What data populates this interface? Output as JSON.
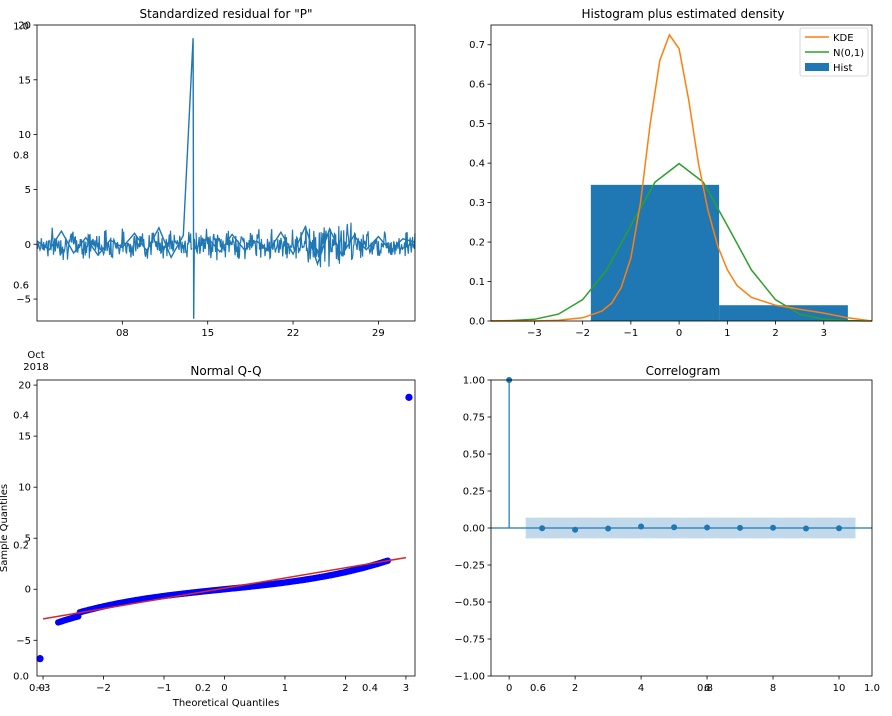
{
  "ghost_ticks": {
    "bg_y": [
      "1.0",
      "0.8",
      "0.6",
      "0.4",
      "0.2",
      "0.0"
    ],
    "bg_x": [
      "0.0",
      "0.2",
      "0.4",
      "0.6",
      "0.8",
      "1.0"
    ]
  },
  "chart_data": [
    {
      "id": "residual",
      "type": "line",
      "title": "Standardized residual for \"P\"",
      "xlabel": "",
      "ylabel": "",
      "x_ticks": [
        "08",
        "15",
        "22",
        "29"
      ],
      "x_tick_days": [
        8,
        15,
        22,
        29
      ],
      "x_start_label": "Oct\n2018",
      "x_range_days": [
        1,
        32
      ],
      "ylim": [
        -7,
        20
      ],
      "y_ticks": [
        20,
        15,
        10,
        5,
        0,
        -5
      ],
      "series": [
        {
          "color": "#1f77b4",
          "x_days": [
            1.0,
            2.0,
            3.0,
            4.0,
            5.0,
            6.0,
            7.0,
            8.0,
            9.0,
            10.0,
            11.0,
            12.0,
            13.0,
            13.8,
            13.85,
            13.9,
            14.0,
            15.0,
            16.0,
            17.0,
            18.0,
            19.0,
            20.0,
            21.0,
            22.0,
            23.0,
            24.0,
            25.0,
            26.0,
            27.0,
            28.0,
            29.0,
            30.0,
            31.0,
            32.0
          ],
          "values": [
            0.3,
            -0.5,
            1.2,
            -0.8,
            0.6,
            -1.0,
            0.4,
            -0.3,
            1.0,
            -0.6,
            1.5,
            -1.2,
            0.8,
            18.8,
            -6.8,
            0.5,
            -0.4,
            0.6,
            -0.7,
            0.9,
            -0.5,
            0.3,
            -0.6,
            1.1,
            -0.9,
            1.6,
            -1.8,
            1.4,
            -1.0,
            0.8,
            -0.5,
            0.7,
            -0.6,
            0.5,
            0.2
          ]
        }
      ]
    },
    {
      "id": "histogram",
      "type": "bar",
      "title": "Histogram plus estimated density",
      "xlim": [
        -3.9,
        4.0
      ],
      "ylim": [
        0,
        0.75
      ],
      "x_ticks": [
        -3,
        -2,
        -1,
        0,
        1,
        2,
        3
      ],
      "y_ticks": [
        0.0,
        0.1,
        0.2,
        0.3,
        0.4,
        0.5,
        0.6,
        0.7
      ],
      "legend": {
        "placement": "top-right",
        "entries": [
          "KDE",
          "N(0,1)",
          "Hist"
        ]
      },
      "bins": [
        {
          "x0": -1.83,
          "x1": 0.83,
          "value": 0.345
        },
        {
          "x0": 0.83,
          "x1": 3.5,
          "value": 0.04
        }
      ],
      "series": [
        {
          "name": "KDE",
          "color": "#ff7f0e",
          "x": [
            -3.9,
            -3.0,
            -2.5,
            -2.0,
            -1.6,
            -1.4,
            -1.2,
            -1.0,
            -0.8,
            -0.6,
            -0.4,
            -0.2,
            0.0,
            0.2,
            0.4,
            0.6,
            0.8,
            1.0,
            1.2,
            1.5,
            2.0,
            2.5,
            3.0,
            3.5,
            4.0
          ],
          "values": [
            0.0,
            0.0,
            0.002,
            0.008,
            0.025,
            0.045,
            0.085,
            0.16,
            0.3,
            0.5,
            0.66,
            0.725,
            0.69,
            0.56,
            0.4,
            0.28,
            0.19,
            0.13,
            0.09,
            0.06,
            0.04,
            0.03,
            0.02,
            0.008,
            0.0
          ]
        },
        {
          "name": "N(0,1)",
          "color": "#2ca02c",
          "x": [
            -3.9,
            -3.5,
            -3.0,
            -2.5,
            -2.0,
            -1.5,
            -1.0,
            -0.5,
            0.0,
            0.5,
            1.0,
            1.5,
            2.0,
            2.5,
            3.0,
            3.5,
            4.0
          ],
          "values": [
            0.0002,
            0.0009,
            0.0044,
            0.0175,
            0.054,
            0.1295,
            0.242,
            0.352,
            0.3989,
            0.352,
            0.242,
            0.1295,
            0.054,
            0.0175,
            0.0044,
            0.0009,
            0.0001
          ]
        }
      ]
    },
    {
      "id": "qq",
      "type": "scatter",
      "title": "Normal Q-Q",
      "xlabel": "Theoretical Quantiles",
      "ylabel": "Sample Quantiles",
      "xlim": [
        -3.1,
        3.15
      ],
      "ylim": [
        -8.5,
        20.5
      ],
      "x_ticks": [
        -3,
        -2,
        -1,
        0,
        1,
        2,
        3
      ],
      "y_ticks": [
        20,
        15,
        10,
        5,
        0,
        -5
      ],
      "fit_line": {
        "color": "#d62728",
        "x": [
          -3.0,
          3.0
        ],
        "y": [
          -2.9,
          3.1
        ]
      },
      "points_color": "#0000ff",
      "outliers": [
        {
          "x": -3.05,
          "y": -6.8
        },
        {
          "x": 3.05,
          "y": 18.8
        }
      ]
    },
    {
      "id": "correlogram",
      "type": "bar",
      "title": "Correlogram",
      "xlim": [
        -0.55,
        11.0
      ],
      "ylim": [
        -1.0,
        1.0
      ],
      "x_ticks": [
        0,
        2,
        4,
        6,
        8,
        10
      ],
      "y_ticks": [
        1.0,
        0.75,
        0.5,
        0.25,
        0.0,
        -0.25,
        -0.5,
        -0.75,
        -1.0
      ],
      "confidence_band": [
        -0.07,
        0.07
      ],
      "lags": [
        0,
        1,
        2,
        3,
        4,
        5,
        6,
        7,
        8,
        9,
        10
      ],
      "values": [
        1.0,
        -0.002,
        -0.012,
        -0.003,
        0.01,
        0.005,
        0.003,
        0.001,
        0.002,
        -0.003,
        -0.002
      ]
    }
  ]
}
